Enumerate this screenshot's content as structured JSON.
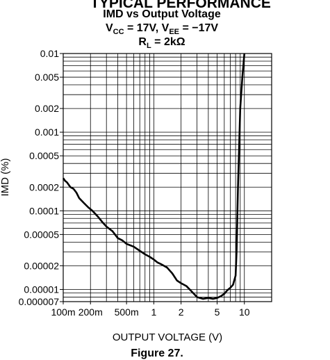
{
  "page": {
    "section_header": "TYPICAL PERFORMANCE",
    "figure_caption": "Figure 27."
  },
  "chart_data": {
    "type": "line",
    "title": "IMD vs Output Voltage",
    "subtitle": {
      "parts": [
        {
          "text": "V"
        },
        {
          "text": "CC",
          "sub": true
        },
        {
          "text": " = 17V, V"
        },
        {
          "text": "EE",
          "sub": true
        },
        {
          "text": " = −17V"
        }
      ]
    },
    "condition": {
      "parts": [
        {
          "text": "R"
        },
        {
          "text": "L",
          "sub": true
        },
        {
          "text": " = 2kΩ"
        }
      ]
    },
    "xlabel": "OUTPUT VOLTAGE (V)",
    "ylabel": "IMD (%)",
    "x_scale": "log",
    "y_scale": "log",
    "xlim": [
      0.1,
      20
    ],
    "ylim": [
      7e-06,
      0.01
    ],
    "grid": true,
    "x_ticks": [
      {
        "value": 0.1,
        "label": "100m"
      },
      {
        "value": 0.2,
        "label": "200m"
      },
      {
        "value": 0.5,
        "label": "500m"
      },
      {
        "value": 1,
        "label": "1"
      },
      {
        "value": 2,
        "label": "2"
      },
      {
        "value": 5,
        "label": "5"
      },
      {
        "value": 10,
        "label": "10"
      }
    ],
    "y_ticks": [
      {
        "value": 0.01,
        "label": "0.01"
      },
      {
        "value": 0.005,
        "label": "0.005"
      },
      {
        "value": 0.002,
        "label": "0.002"
      },
      {
        "value": 0.001,
        "label": "0.001"
      },
      {
        "value": 0.0005,
        "label": "0.0005"
      },
      {
        "value": 0.0002,
        "label": "0.0002"
      },
      {
        "value": 0.0001,
        "label": "0.0001"
      },
      {
        "value": 5e-05,
        "label": "0.00005"
      },
      {
        "value": 2e-05,
        "label": "0.00002"
      },
      {
        "value": 1e-05,
        "label": "0.00001"
      },
      {
        "value": 7e-06,
        "label": "0.000007"
      }
    ],
    "series": [
      {
        "color": "#000000",
        "x": [
          0.1,
          0.105,
          0.11,
          0.12,
          0.13,
          0.14,
          0.15,
          0.17,
          0.19,
          0.21,
          0.24,
          0.27,
          0.3,
          0.35,
          0.4,
          0.45,
          0.5,
          0.6,
          0.7,
          0.8,
          0.9,
          1.0,
          1.1,
          1.2,
          1.4,
          1.6,
          1.8,
          2.0,
          2.3,
          2.6,
          3.0,
          3.5,
          4.0,
          4.5,
          5.0,
          5.5,
          6.0,
          6.5,
          7.0,
          7.5,
          8.0,
          8.2,
          8.5,
          9.0,
          9.5,
          10.0
        ],
        "y": [
          0.00026,
          0.00024,
          0.00023,
          0.0002,
          0.00019,
          0.00017,
          0.000145,
          0.000125,
          0.00011,
          0.0001,
          8.5e-05,
          7.2e-05,
          6.3e-05,
          5.5e-05,
          4.5e-05,
          4.2e-05,
          3.8e-05,
          3.5e-05,
          3.1e-05,
          2.8e-05,
          2.6e-05,
          2.4e-05,
          2.2e-05,
          2.1e-05,
          1.9e-05,
          1.6e-05,
          1.3e-05,
          1.2e-05,
          1.1e-05,
          9.5e-06,
          8e-06,
          7.6e-06,
          7.8e-06,
          7.6e-06,
          7.8e-06,
          8.2e-06,
          8.8e-06,
          9.8e-06,
          1.05e-05,
          1.15e-05,
          1.5e-05,
          3e-05,
          0.0002,
          0.002,
          0.005,
          0.01
        ]
      }
    ]
  }
}
